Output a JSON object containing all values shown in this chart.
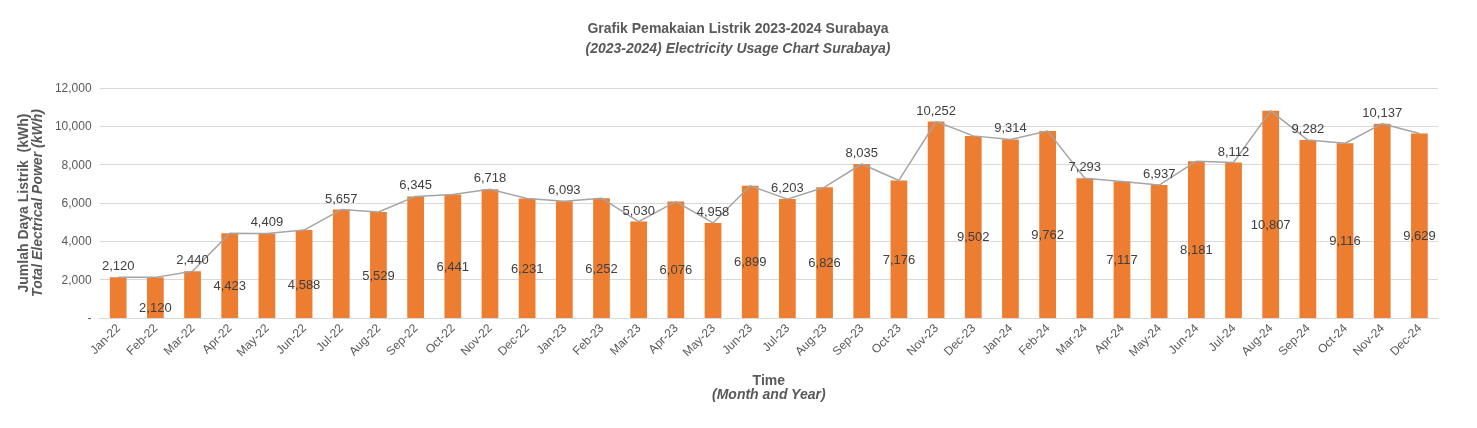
{
  "chart_data": {
    "type": "bar",
    "title": "Grafik Pemakaian Listrik 2023-2024 Surabaya",
    "subtitle": "(2023-2024) Electricity Usage Chart Surabaya)",
    "xlabel": "Time\n(Month and Year)",
    "ylabel": "Jumlah Daya Listrik  (kWh)\nTotal Electrical Power (kWh)",
    "categories": [
      "Jan-22",
      "Feb-22",
      "Mar-22",
      "Apr-22",
      "May-22",
      "Jun-22",
      "Jul-22",
      "Aug-22",
      "Sep-22",
      "Oct-22",
      "Nov-22",
      "Dec-22",
      "Jan-23",
      "Feb-23",
      "Mar-23",
      "Apr-23",
      "May-23",
      "Jun-23",
      "Jul-23",
      "Aug-23",
      "Sep-23",
      "Oct-23",
      "Nov-23",
      "Dec-23",
      "Jan-24",
      "Feb-24",
      "Mar-24",
      "Apr-24",
      "May-24",
      "Jun-24",
      "Jul-24",
      "Aug-24",
      "Sep-24",
      "Oct-24",
      "Nov-24",
      "Dec-24"
    ],
    "series": [
      {
        "color": "#ed7d31",
        "values": [
          2120,
          2120,
          2440,
          4423,
          4409,
          4588,
          5657,
          5529,
          6345,
          6441,
          6718,
          6231,
          6093,
          6252,
          5030,
          6076,
          4958,
          6899,
          6203,
          6826,
          8035,
          7176,
          10252,
          9502,
          9314,
          9762,
          7293,
          7117,
          6937,
          8181,
          8112,
          10807,
          9282,
          9116,
          10137,
          9629
        ],
        "value_labels": [
          null,
          "2,120",
          null,
          "4,423",
          null,
          "4,588",
          null,
          "5,529",
          null,
          "6,441",
          null,
          "6,231",
          null,
          "6,252",
          null,
          "6,076",
          null,
          "6,899",
          null,
          "6,826",
          null,
          "7,176",
          null,
          "9,502",
          null,
          "9,762",
          null,
          "7,117",
          null,
          "8,181",
          null,
          "10,807",
          null,
          "9,116",
          null,
          "9,629"
        ]
      },
      {
        "type": "line",
        "color": "#a5a5a5",
        "values": [
          2120,
          2120,
          2440,
          4423,
          4409,
          4588,
          5657,
          5529,
          6345,
          6441,
          6718,
          6231,
          6093,
          6252,
          5030,
          6076,
          4958,
          6899,
          6203,
          6826,
          8035,
          7176,
          10252,
          9502,
          9314,
          9762,
          7293,
          7117,
          6937,
          8181,
          8112,
          10807,
          9282,
          9116,
          10137,
          9629
        ],
        "value_labels": [
          "2,120",
          null,
          "2,440",
          null,
          "4,409",
          null,
          "5,657",
          null,
          "6,345",
          null,
          "6,718",
          null,
          "6,093",
          null,
          "5,030",
          null,
          "4,958",
          null,
          "6,203",
          null,
          "8,035",
          null,
          "10,252",
          null,
          "9,314",
          null,
          "7,293",
          null,
          "6,937",
          null,
          "8,112",
          null,
          "9,282",
          null,
          "10,137",
          null
        ]
      }
    ],
    "ylim": [
      0,
      12000
    ],
    "yticks": [
      {
        "value": 0,
        "label": "-"
      },
      {
        "value": 2000,
        "label": "2,000"
      },
      {
        "value": 4000,
        "label": "4,000"
      },
      {
        "value": 6000,
        "label": "6,000"
      },
      {
        "value": 8000,
        "label": "8,000"
      },
      {
        "value": 10000,
        "label": "10,000"
      },
      {
        "value": 12000,
        "label": "12,000"
      }
    ],
    "grid": "y",
    "marker": "none",
    "line_style": "solid"
  }
}
